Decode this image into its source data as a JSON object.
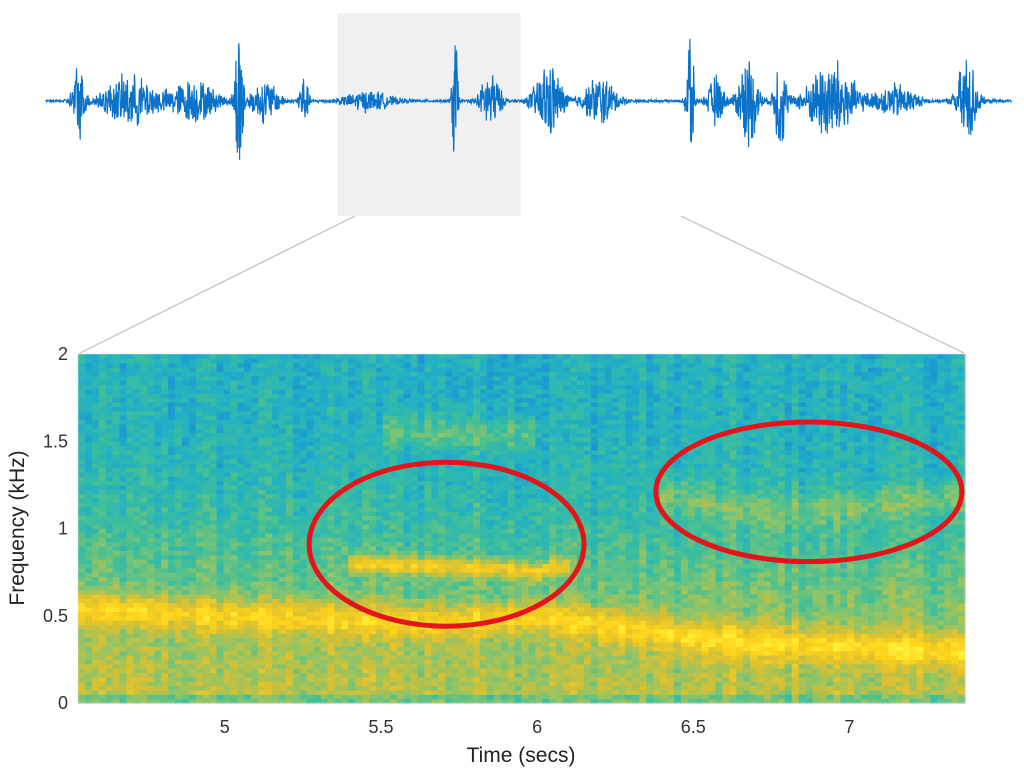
{
  "chart_data": {
    "type": "heatmap",
    "title": "",
    "xlabel": "Time (secs)",
    "ylabel": "Frequency (kHz)",
    "xlim": [
      4.53,
      7.37
    ],
    "ylim": [
      0,
      2
    ],
    "x_ticks": [
      5,
      5.5,
      6,
      6.5,
      7
    ],
    "x_tick_labels": [
      "5",
      "5.5",
      "6",
      "6.5",
      "7"
    ],
    "y_ticks": [
      0,
      0.5,
      1,
      1.5,
      2
    ],
    "y_tick_labels": [
      "0",
      "0.5",
      "1",
      "1.5",
      "2"
    ],
    "grid": false,
    "colormap": [
      "#1f4fd8",
      "#1a8bd8",
      "#21b0c6",
      "#3fbf9a",
      "#8cc46a",
      "#d9c032",
      "#ffd21a",
      "#fff23a"
    ],
    "ridges": [
      {
        "t": [
          4.53,
          4.8,
          5.1,
          5.4,
          5.7,
          6.0,
          6.2,
          6.5,
          6.8,
          7.1,
          7.37
        ],
        "f": [
          0.55,
          0.52,
          0.5,
          0.48,
          0.46,
          0.5,
          0.45,
          0.38,
          0.34,
          0.32,
          0.3
        ],
        "strength": 0.85
      },
      {
        "t": [
          5.45,
          5.6,
          5.75,
          5.9,
          6.0,
          6.05
        ],
        "f": [
          0.8,
          0.79,
          0.78,
          0.77,
          0.75,
          0.78
        ],
        "strength": 1.0
      },
      {
        "t": [
          5.55,
          5.7,
          5.85,
          5.95
        ],
        "f": [
          1.56,
          1.55,
          1.54,
          1.55
        ],
        "strength": 0.5
      },
      {
        "t": [
          6.45,
          6.6,
          6.8,
          7.0,
          7.2,
          7.33
        ],
        "f": [
          1.2,
          1.12,
          1.1,
          1.12,
          1.16,
          1.18
        ],
        "strength": 0.45
      }
    ],
    "annotations": [
      {
        "type": "ellipse",
        "cx": 5.71,
        "cy": 0.91,
        "rx": 0.44,
        "ry": 0.47,
        "color": "#e5141a"
      },
      {
        "type": "ellipse",
        "cx": 6.87,
        "cy": 1.21,
        "rx": 0.49,
        "ry": 0.4,
        "color": "#e5141a"
      }
    ],
    "waveform": {
      "color": "#0a72c9",
      "time_range": [
        0,
        15
      ],
      "highlight": {
        "start": 4.53,
        "end": 7.37,
        "color": "#f0f0f0"
      },
      "bursts": [
        {
          "t": 0.5,
          "w": 0.15,
          "a": 0.45
        },
        {
          "t": 1.3,
          "w": 0.7,
          "a": 0.3
        },
        {
          "t": 2.3,
          "w": 0.6,
          "a": 0.25
        },
        {
          "t": 3.0,
          "w": 0.08,
          "a": 1.0
        },
        {
          "t": 3.4,
          "w": 0.35,
          "a": 0.25
        },
        {
          "t": 4.0,
          "w": 0.12,
          "a": 0.3
        },
        {
          "t": 5.0,
          "w": 0.6,
          "a": 0.12
        },
        {
          "t": 6.35,
          "w": 0.05,
          "a": 1.0
        },
        {
          "t": 6.9,
          "w": 0.25,
          "a": 0.35
        },
        {
          "t": 7.8,
          "w": 0.35,
          "a": 0.45
        },
        {
          "t": 8.6,
          "w": 0.4,
          "a": 0.3
        },
        {
          "t": 10.0,
          "w": 0.07,
          "a": 0.95
        },
        {
          "t": 10.4,
          "w": 0.2,
          "a": 0.3
        },
        {
          "t": 10.9,
          "w": 0.25,
          "a": 0.55
        },
        {
          "t": 11.4,
          "w": 0.15,
          "a": 0.6
        },
        {
          "t": 12.2,
          "w": 0.6,
          "a": 0.5
        },
        {
          "t": 13.2,
          "w": 0.5,
          "a": 0.2
        },
        {
          "t": 14.3,
          "w": 0.25,
          "a": 0.55
        }
      ]
    }
  }
}
